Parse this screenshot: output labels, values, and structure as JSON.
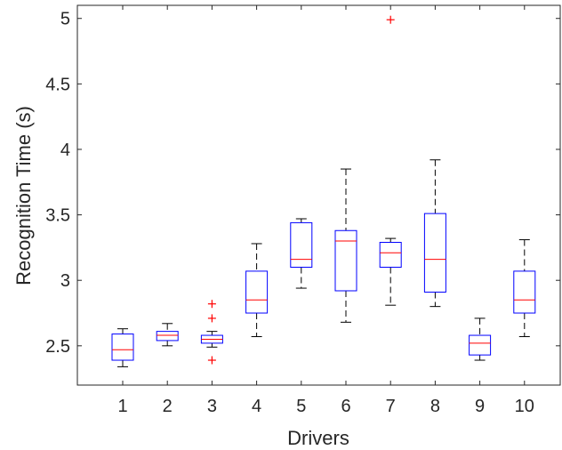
{
  "chart_data": {
    "type": "box",
    "xlabel": "Drivers",
    "ylabel": "Recognition Time (s)",
    "categories": [
      "1",
      "2",
      "3",
      "4",
      "5",
      "6",
      "7",
      "8",
      "9",
      "10"
    ],
    "ylim": [
      2.2,
      5.1
    ],
    "yticks": [
      "2.5",
      "3",
      "3.5",
      "4",
      "4.5",
      "5"
    ],
    "grid": false,
    "colors": {
      "box": "#0000ff",
      "median": "#ff0000",
      "whisker": "#000000",
      "outlier": "#ff0000",
      "axis": "#262626"
    },
    "boxes": [
      {
        "category": "1",
        "min": 2.34,
        "q1": 2.39,
        "median": 2.47,
        "q3": 2.59,
        "max": 2.63,
        "outliers": []
      },
      {
        "category": "2",
        "min": 2.5,
        "q1": 2.54,
        "median": 2.58,
        "q3": 2.61,
        "max": 2.67,
        "outliers": []
      },
      {
        "category": "3",
        "min": 2.49,
        "q1": 2.52,
        "median": 2.55,
        "q3": 2.58,
        "max": 2.61,
        "outliers": [
          2.82,
          2.71,
          2.39
        ]
      },
      {
        "category": "4",
        "min": 2.57,
        "q1": 2.75,
        "median": 2.85,
        "q3": 3.07,
        "max": 3.28,
        "outliers": []
      },
      {
        "category": "5",
        "min": 2.94,
        "q1": 3.1,
        "median": 3.16,
        "q3": 3.44,
        "max": 3.47,
        "outliers": []
      },
      {
        "category": "6",
        "min": 2.68,
        "q1": 2.92,
        "median": 3.3,
        "q3": 3.38,
        "max": 3.85,
        "outliers": []
      },
      {
        "category": "7",
        "min": 2.81,
        "q1": 3.1,
        "median": 3.21,
        "q3": 3.29,
        "max": 3.32,
        "outliers": [
          4.99
        ]
      },
      {
        "category": "8",
        "min": 2.8,
        "q1": 2.91,
        "median": 3.16,
        "q3": 3.51,
        "max": 3.92,
        "outliers": []
      },
      {
        "category": "9",
        "min": 2.39,
        "q1": 2.43,
        "median": 2.52,
        "q3": 2.58,
        "max": 2.71,
        "outliers": []
      },
      {
        "category": "10",
        "min": 2.57,
        "q1": 2.75,
        "median": 2.85,
        "q3": 3.07,
        "max": 3.31,
        "outliers": []
      }
    ]
  }
}
